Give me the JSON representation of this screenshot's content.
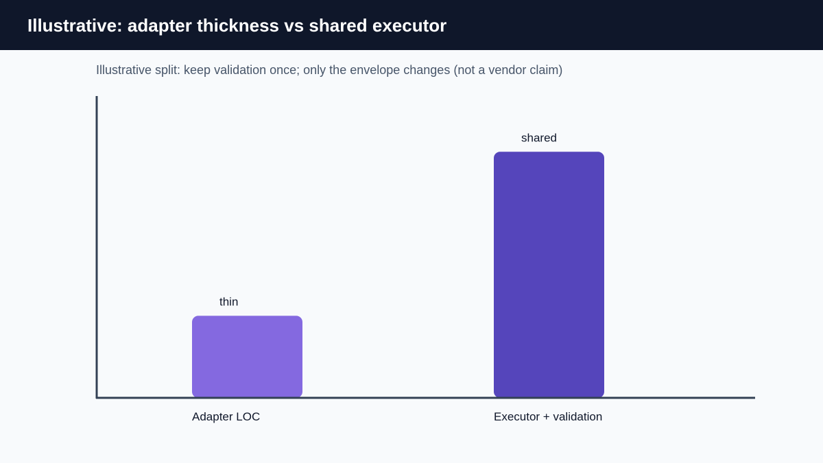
{
  "header": {
    "title": "Illustrative: adapter thickness vs shared executor"
  },
  "subtitle": "Illustrative split: keep validation once; only the envelope changes (not a vendor claim)",
  "colors": {
    "header_bg": "#0f172a",
    "page_bg": "#f8fafc",
    "axis": "#334155",
    "bar_adapter": "#8469e0",
    "bar_executor": "#5545bb",
    "label_text": "#0f172a"
  },
  "chart_data": {
    "type": "bar",
    "categories": [
      "Adapter LOC",
      "Executor + validation"
    ],
    "values": [
      25,
      75
    ],
    "data_labels": [
      "thin",
      "shared"
    ],
    "bar_colors": [
      "#8469e0",
      "#5545bb"
    ],
    "ylim": [
      0,
      92
    ],
    "xlabel": "",
    "ylabel": "",
    "grid": false,
    "legend": "none"
  }
}
